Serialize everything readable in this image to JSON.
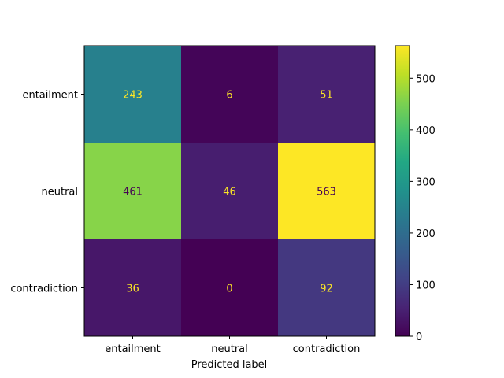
{
  "chart_data": {
    "type": "heatmap",
    "title": "",
    "xlabel": "Predicted label",
    "ylabel": "",
    "x_categories": [
      "entailment",
      "neutral",
      "contradiction"
    ],
    "y_categories": [
      "entailment",
      "neutral",
      "contradiction"
    ],
    "values": [
      [
        243,
        6,
        51
      ],
      [
        461,
        46,
        563
      ],
      [
        36,
        0,
        92
      ]
    ],
    "colormap": "viridis",
    "value_range": [
      0,
      563
    ],
    "colorbar_ticks": [
      0,
      100,
      200,
      300,
      400,
      500
    ],
    "text_color_light": "#fde725",
    "text_color_dark": "#440154"
  }
}
